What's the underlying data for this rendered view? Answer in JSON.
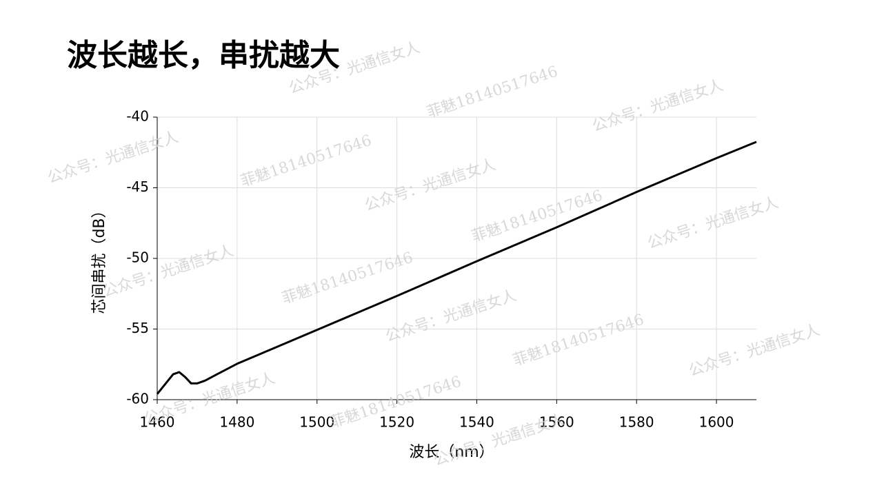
{
  "chart_data": {
    "type": "line",
    "title": "波长越长，串扰越大",
    "x_label": "波长（nm）",
    "y_label": "芯间串扰（dB）",
    "xlim": [
      1460,
      1610
    ],
    "ylim": [
      -60,
      -40
    ],
    "xticks": [
      1460,
      1480,
      1500,
      1520,
      1540,
      1560,
      1580,
      1600
    ],
    "yticks": [
      -60,
      -55,
      -50,
      -45,
      -40
    ],
    "grid": true,
    "series": [
      {
        "color": "#000000",
        "x": [
          1460,
          1462,
          1464,
          1465.5,
          1467,
          1468.5,
          1470,
          1472,
          1475,
          1480,
          1500,
          1520,
          1540,
          1560,
          1580,
          1600,
          1610
        ],
        "values": [
          -59.6,
          -58.9,
          -58.2,
          -58.05,
          -58.4,
          -58.85,
          -58.85,
          -58.65,
          -58.2,
          -57.46,
          -55.06,
          -52.66,
          -50.2,
          -47.8,
          -45.3,
          -42.9,
          -41.75
        ]
      }
    ],
    "watermarks": [
      "公众号：光通信女人",
      "菲魅18140517646"
    ]
  }
}
